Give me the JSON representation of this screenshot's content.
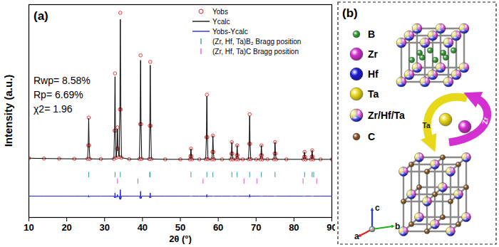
{
  "chart_data": {
    "type": "line",
    "x_label": "2θ (°)",
    "y_label": "Intensity (a.u.)",
    "annotations": [
      "(a)",
      "Rwp= 8.58%",
      "Rp= 6.69%",
      "χ2= 1.96"
    ],
    "x": [
      10,
      14,
      18,
      22,
      25.5,
      25.68,
      25.8,
      25.92,
      26.1,
      29,
      32.45,
      32.63,
      32.75,
      32.87,
      33.05,
      33.28,
      33.4,
      33.52,
      33.85,
      34.03,
      34.15,
      34.27,
      34.45,
      36.5,
      39.2,
      39.38,
      39.5,
      39.62,
      39.8,
      41.75,
      41.93,
      42.05,
      42.17,
      42.35,
      46,
      50,
      52.5,
      52.68,
      52.8,
      52.92,
      53.1,
      55,
      56.7,
      56.88,
      57.0,
      57.12,
      57.3,
      58.3,
      58.48,
      58.6,
      58.72,
      58.9,
      61,
      63.3,
      63.48,
      63.6,
      63.72,
      63.9,
      64.7,
      64.88,
      65.0,
      65.12,
      65.3,
      66.5,
      68.0,
      68.18,
      68.3,
      68.42,
      68.6,
      70,
      71.1,
      71.28,
      71.4,
      71.52,
      71.7,
      73,
      74.7,
      74.88,
      75.0,
      75.12,
      75.3,
      78,
      82.5,
      82.68,
      82.8,
      82.92,
      83.1,
      84.5,
      84.68,
      84.8,
      84.92,
      85.1,
      87,
      90
    ],
    "series": [
      {
        "name": "Yobs",
        "color": "#e8262b",
        "type": "scatter",
        "marker": "circle",
        "values": [
          1.2,
          1.0,
          0.9,
          0.8,
          0.8,
          9,
          26,
          9,
          0.8,
          0.7,
          0.8,
          18,
          53,
          18,
          1.5,
          7,
          20,
          7,
          2,
          31,
          90,
          31,
          1.5,
          0.6,
          0.7,
          22,
          64,
          22,
          0.8,
          0.7,
          21,
          60,
          21,
          0.7,
          0.5,
          0.5,
          0.5,
          2.5,
          7,
          2.5,
          0.5,
          0.5,
          0.6,
          14,
          40,
          14,
          0.6,
          0.5,
          5,
          15,
          5,
          0.5,
          0.5,
          0.5,
          4,
          11,
          4,
          0.5,
          0.5,
          3,
          9,
          3,
          0.5,
          0.5,
          0.6,
          10,
          28,
          10,
          0.6,
          0.5,
          0.5,
          3,
          9,
          3,
          0.5,
          0.5,
          0.5,
          4,
          11,
          4,
          0.5,
          0.5,
          0.5,
          2,
          5,
          2,
          0.5,
          0.5,
          2.2,
          6,
          2.2,
          0.5,
          0.5,
          0.5
        ]
      },
      {
        "name": "Ycalc",
        "color": "#000000",
        "type": "line",
        "values": [
          1.2,
          1.0,
          0.9,
          0.8,
          0.8,
          9.5,
          25.5,
          9.5,
          0.8,
          0.7,
          0.8,
          19,
          51,
          19,
          1.5,
          7.5,
          19,
          7.5,
          2,
          33,
          86,
          33,
          1.5,
          0.6,
          0.7,
          23.5,
          61,
          23.5,
          0.8,
          0.7,
          22,
          58,
          22,
          0.7,
          0.5,
          0.5,
          0.5,
          2.5,
          7,
          2.5,
          0.5,
          0.5,
          0.6,
          14.5,
          39,
          14.5,
          0.6,
          0.5,
          5,
          15,
          5,
          0.5,
          0.5,
          0.5,
          4,
          11,
          4,
          0.5,
          0.5,
          3,
          9,
          3,
          0.5,
          0.5,
          0.6,
          10.5,
          27,
          10.5,
          0.6,
          0.5,
          0.5,
          3,
          9,
          3,
          0.5,
          0.5,
          0.5,
          4,
          11,
          4,
          0.5,
          0.5,
          0.5,
          2,
          5,
          2,
          0.5,
          0.5,
          2.2,
          6,
          2.2,
          0.5,
          0.5,
          0.5
        ]
      },
      {
        "name": "Yobs-Ycalc",
        "color": "#1a1adb",
        "type": "line",
        "values": [
          -22,
          -22,
          -22,
          -22,
          -22,
          -22.5,
          -21.5,
          -22.5,
          -22,
          -22,
          -22,
          -23,
          -20,
          -23,
          -22,
          -22.5,
          -21,
          -22.5,
          -22,
          -24,
          -18,
          -24,
          -22,
          -22,
          -22,
          -23.5,
          -19,
          -23.5,
          -22,
          -22,
          -23,
          -20,
          -23,
          -22,
          -22,
          -22,
          -22,
          -22,
          -22,
          -22,
          -22,
          -22,
          -22,
          -22.5,
          -21,
          -22.5,
          -22,
          -22,
          -22,
          -22,
          -22,
          -22,
          -22,
          -22,
          -22,
          -22,
          -22,
          -22,
          -22,
          -22,
          -22,
          -22,
          -22,
          -22,
          -22,
          -22.5,
          -21,
          -22.5,
          -22,
          -22,
          -22,
          -22,
          -22,
          -22,
          -22,
          -22,
          -22,
          -22,
          -22,
          -22,
          -22,
          -22,
          -22,
          -22,
          -22,
          -22,
          -22,
          -22,
          -22,
          -22,
          -22,
          -22,
          -22,
          -22
        ]
      },
      {
        "name": "(Zr, Hf, Ta)B₂ Bragg position",
        "color": "#2f9c95",
        "type": "tick",
        "x": [
          25.8,
          32.75,
          34.15,
          41.9,
          42.05,
          52.8,
          57.0,
          58.6,
          63.6,
          65.0,
          68.3,
          71.4,
          75.0,
          82.8,
          84.8,
          85.2
        ],
        "values": [
          -9,
          -9,
          -9,
          -9,
          -9,
          -9,
          -9,
          -9,
          -9,
          -9,
          -9,
          -9,
          -9,
          -9,
          -9,
          -9
        ]
      },
      {
        "name": "(Zr, Hf, Ta)C Bragg position",
        "color": "#e651c8",
        "type": "tick",
        "x": [
          33.4,
          38.8,
          56.0,
          66.8,
          70.2,
          82.4,
          86.0
        ],
        "values": [
          -13,
          -13,
          -13,
          -13,
          -13,
          -13,
          -13
        ]
      }
    ],
    "xlim": [
      10,
      90
    ],
    "xticks": [
      10,
      20,
      30,
      40,
      50,
      60,
      70,
      80,
      90
    ],
    "ylim": [
      -35,
      95
    ],
    "tick_labels": "x",
    "legend": "top-right"
  },
  "diagram": {
    "panel_label": "(b)",
    "legend": [
      {
        "label": "B",
        "color": "#3ca03c"
      },
      {
        "label": "Zr",
        "color": "#d42fd0"
      },
      {
        "label": "Hf",
        "color": "#1e1ed2"
      },
      {
        "label": "Ta",
        "color": "#e8d81a"
      },
      {
        "label": "Zr/Hf/Ta"
      },
      {
        "label": "C",
        "color": "#8b5a2b"
      }
    ],
    "arrows": [
      {
        "label": "Ta",
        "color": "#e8d81a"
      },
      {
        "label": "Zr",
        "color": "#d42fd0"
      }
    ],
    "axes": [
      {
        "label": "a",
        "color": "#e02020"
      },
      {
        "label": "b",
        "color": "#20b020"
      },
      {
        "label": "c",
        "color": "#2040e0"
      }
    ]
  }
}
